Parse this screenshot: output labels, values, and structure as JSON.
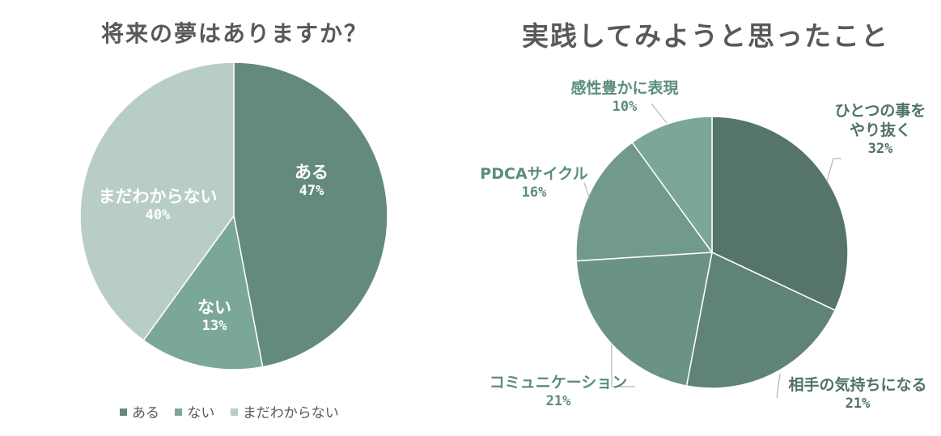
{
  "chart_data": [
    {
      "type": "pie",
      "title": "将来の夢はありますか？",
      "categories": [
        "ある",
        "ない",
        "まだわからない"
      ],
      "values": [
        47,
        13,
        40
      ],
      "colors": [
        "#648a7f",
        "#7ba799",
        "#b8cdc6"
      ],
      "labels": [
        {
          "category": "ある",
          "pct": "47%"
        },
        {
          "category": "ない",
          "pct": "13%"
        },
        {
          "category": "まだわからない",
          "pct": "40%"
        }
      ],
      "legend": {
        "position": "bottom",
        "items": [
          "ある",
          "ない",
          "まだわからない"
        ]
      }
    },
    {
      "type": "pie",
      "title": "実践してみようと思ったこと",
      "categories": [
        "ひとつの事をやり抜く",
        "相手の気持ちになる",
        "コミュニケーション",
        "PDCAサイクル",
        "感性豊かに表現"
      ],
      "values": [
        32,
        21,
        21,
        16,
        10
      ],
      "colors": [
        "#55756a",
        "#5f8378",
        "#6a9385",
        "#71998d",
        "#7ca699"
      ],
      "labels": [
        {
          "category_lines": [
            "ひとつの事を",
            "やり抜く"
          ],
          "pct": "32%"
        },
        {
          "category_lines": [
            "相手の気持ちになる"
          ],
          "pct": "21%"
        },
        {
          "category_lines": [
            "コミュニケーション"
          ],
          "pct": "21%"
        },
        {
          "category_lines": [
            "PDCAサイクル"
          ],
          "pct": "16%"
        },
        {
          "category_lines": [
            "感性豊かに表現"
          ],
          "pct": "10%"
        }
      ]
    }
  ]
}
